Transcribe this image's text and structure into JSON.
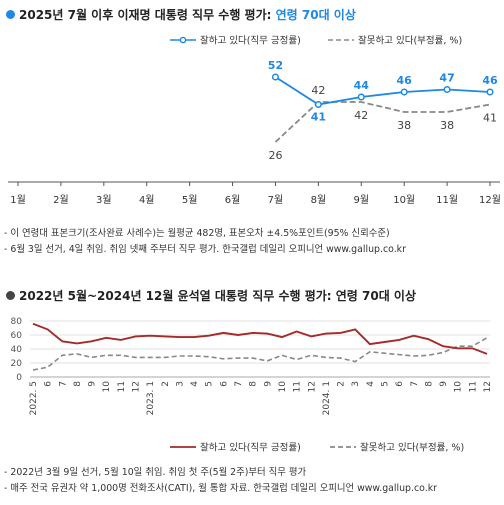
{
  "top": {
    "title_main": "2025년 7월 이후 이재명 대통령 직무 수행 평가: ",
    "title_highlight": "연령 70대 이상",
    "dot_color": "#1e88e5",
    "notes": [
      "- 이 연령대 표본크기(조사완료 사례수)는 월평균 482명, 표본오차 ±4.5%포인트(95% 신뢰수준)",
      "- 6월 3일 선거, 4일 취임. 취임 넷째 주부터 직무 평가. 한국갤럽 데일리 오피니언 www.gallup.co.kr"
    ]
  },
  "bottom": {
    "title_main": "2022년 5월~2024년 12월 윤석열 대통령 직무 수행 평가: 연령 70대 이상",
    "dot_color": "#444444",
    "notes": [
      "- 2022년 3월 9일 선거, 5월 10일 취임. 취임 첫 주(5월 2주)부터 직무 평가",
      "- 매주 전국 유권자 약 1,000명 전화조사(CATI), 월 통합 자료. 한국갤럽 데일리 오피니언 www.gallup.co.kr"
    ]
  },
  "chart_data": [
    {
      "type": "line",
      "x": [
        "1월",
        "2월",
        "3월",
        "4월",
        "5월",
        "6월",
        "7월",
        "8월",
        "9월",
        "10월",
        "11월",
        "12월"
      ],
      "series": [
        {
          "name": "잘하고 있다(직무 긍정률)",
          "color": "#1e88e5",
          "style": "solid",
          "marker": true,
          "values": [
            null,
            null,
            null,
            null,
            null,
            null,
            52,
            41,
            44,
            46,
            47,
            46
          ]
        },
        {
          "name": "잘못하고 있다(부정률, %)",
          "color": "#888888",
          "style": "dashed",
          "marker": false,
          "values": [
            null,
            null,
            null,
            null,
            null,
            null,
            26,
            42,
            42,
            38,
            38,
            41
          ]
        }
      ],
      "ylim": [
        0,
        60
      ],
      "grid": false,
      "legend": "top-right",
      "data_labels": true
    },
    {
      "type": "line",
      "x": [
        "2022. 5",
        "6",
        "7",
        "8",
        "9",
        "10",
        "11",
        "12",
        "2023. 1",
        "2",
        "3",
        "4",
        "5",
        "6",
        "7",
        "8",
        "9",
        "10",
        "11",
        "12",
        "2024. 1",
        "2",
        "3",
        "4",
        "5",
        "6",
        "7",
        "8",
        "9",
        "10",
        "11",
        "12"
      ],
      "yticks": [
        0,
        20,
        40,
        60,
        80
      ],
      "series": [
        {
          "name": "잘하고 있다(직무 긍정률)",
          "color": "#a52a2a",
          "style": "solid",
          "values": [
            76,
            68,
            51,
            48,
            51,
            56,
            53,
            58,
            59,
            58,
            57,
            57,
            59,
            63,
            60,
            63,
            62,
            57,
            65,
            58,
            62,
            63,
            68,
            47,
            50,
            53,
            59,
            54,
            44,
            41,
            41,
            33
          ]
        },
        {
          "name": "잘못하고 있다(부정률, %)",
          "color": "#888888",
          "style": "dashed",
          "values": [
            10,
            14,
            31,
            33,
            28,
            31,
            31,
            28,
            28,
            28,
            30,
            30,
            29,
            26,
            27,
            27,
            23,
            31,
            25,
            31,
            28,
            27,
            22,
            36,
            34,
            32,
            30,
            31,
            35,
            44,
            44,
            56
          ]
        }
      ],
      "ylim": [
        0,
        80
      ],
      "grid": true,
      "legend": "bottom-center"
    }
  ]
}
